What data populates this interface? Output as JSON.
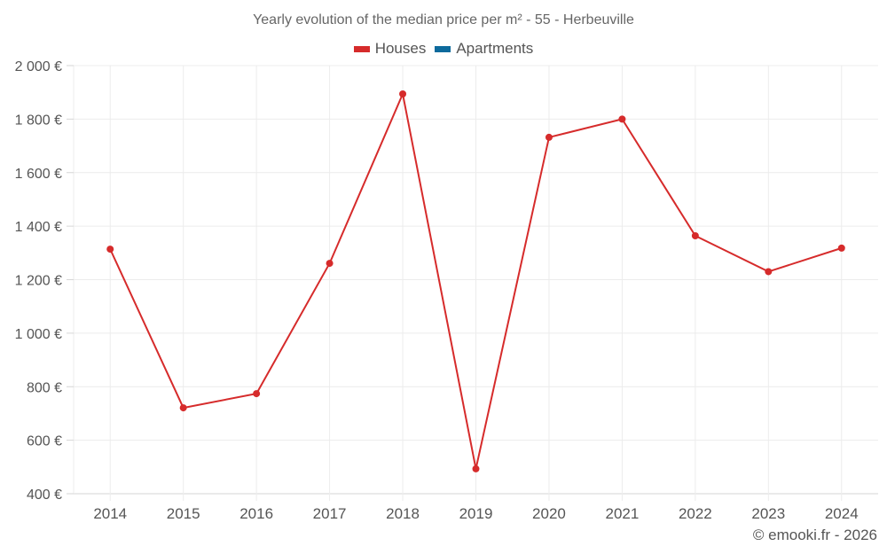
{
  "title": "Yearly evolution of the median price per m² - 55 - Herbeuville",
  "legend": [
    {
      "label": "Houses",
      "color": "#d62b2b"
    },
    {
      "label": "Apartments",
      "color": "#0d6a9c"
    }
  ],
  "credit": "© emooki.fr - 2026",
  "chart_data": {
    "type": "line",
    "title": "Yearly evolution of the median price per m² - 55 - Herbeuville",
    "xlabel": "",
    "ylabel": "",
    "categories": [
      "2014",
      "2015",
      "2016",
      "2017",
      "2018",
      "2019",
      "2020",
      "2021",
      "2022",
      "2023",
      "2024"
    ],
    "series": [
      {
        "name": "Houses",
        "color": "#d62b2b",
        "values": [
          1314,
          721,
          774,
          1261,
          1894,
          493,
          1732,
          1800,
          1364,
          1230,
          1318
        ]
      },
      {
        "name": "Apartments",
        "color": "#0d6a9c",
        "values": []
      }
    ],
    "ylim": [
      400,
      2000
    ],
    "yticks": [
      400,
      600,
      800,
      1000,
      1200,
      1400,
      1600,
      1800,
      2000
    ],
    "ytick_labels": [
      "400 €",
      "600 €",
      "800 €",
      "1 000 €",
      "1 200 €",
      "1 400 €",
      "1 600 €",
      "1 800 €",
      "2 000 €"
    ],
    "grid": true,
    "legend_position": "top"
  }
}
